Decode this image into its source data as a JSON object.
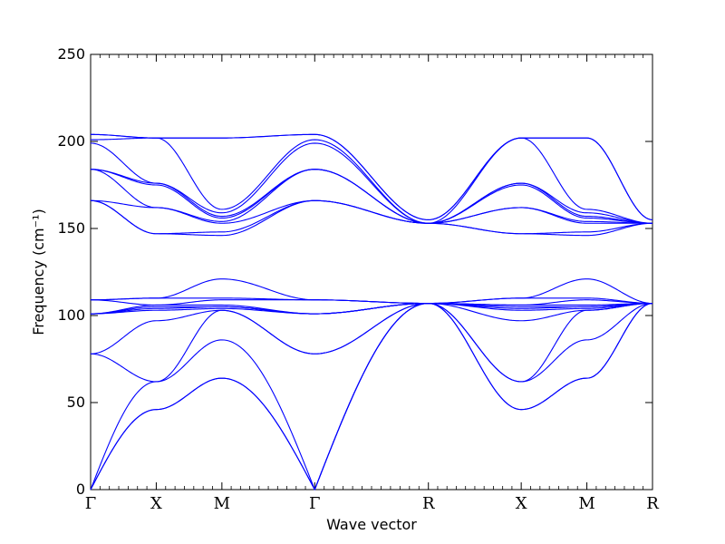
{
  "chart_data": {
    "type": "line",
    "xlabel": "Wave vector",
    "ylabel": "Frequency (cm⁻¹)",
    "ylim": [
      0,
      250
    ],
    "yticks": [
      "0",
      "50",
      "100",
      "150",
      "200",
      "250"
    ],
    "grid": false,
    "x_axis_kind": "k-path (symmetry points)",
    "symmetry_points": [
      {
        "label": "Γ",
        "x": 0
      },
      {
        "label": "X",
        "x": 1
      },
      {
        "label": "M",
        "x": 2
      },
      {
        "label": "Γ",
        "x": 3.4142
      },
      {
        "label": "R",
        "x": 5.1462
      },
      {
        "label": "X",
        "x": 6.5604
      },
      {
        "label": "M",
        "x": 7.5604
      },
      {
        "label": "R",
        "x": 8.5604
      }
    ],
    "line_color": "#0000ff",
    "series_note": "phonon dispersion branches; frequencies at symmetry points (cm^-1)",
    "branches": [
      {
        "values": [
          0,
          46,
          64,
          0,
          107,
          46,
          64,
          107
        ]
      },
      {
        "values": [
          0,
          46,
          64,
          0,
          107,
          46,
          64,
          107
        ]
      },
      {
        "values": [
          0,
          62,
          86,
          0,
          107,
          62,
          86,
          107
        ]
      },
      {
        "values": [
          78,
          62,
          103,
          78,
          107,
          62,
          103,
          107
        ]
      },
      {
        "values": [
          78,
          97,
          103,
          78,
          107,
          97,
          103,
          107
        ]
      },
      {
        "values": [
          101,
          103,
          104,
          101,
          107,
          103,
          104,
          107
        ]
      },
      {
        "values": [
          101,
          104,
          105,
          101,
          107,
          104,
          105,
          107
        ]
      },
      {
        "values": [
          101,
          105,
          105,
          101,
          107,
          105,
          105,
          107
        ]
      },
      {
        "values": [
          101,
          106,
          106,
          101,
          107,
          106,
          106,
          107
        ]
      },
      {
        "values": [
          109,
          106,
          109,
          109,
          107,
          106,
          109,
          107
        ]
      },
      {
        "values": [
          109,
          110,
          110,
          109,
          107,
          110,
          110,
          107
        ]
      },
      {
        "values": [
          109,
          110,
          121,
          109,
          107,
          110,
          121,
          107
        ]
      },
      {
        "values": [
          166,
          147,
          146,
          166,
          153,
          147,
          146,
          153
        ]
      },
      {
        "values": [
          166,
          147,
          148,
          166,
          153,
          147,
          148,
          153
        ]
      },
      {
        "values": [
          166,
          162,
          153,
          166,
          153,
          162,
          153,
          153
        ]
      },
      {
        "values": [
          184,
          162,
          154,
          184,
          153,
          162,
          154,
          153
        ]
      },
      {
        "values": [
          184,
          175,
          156,
          184,
          153,
          175,
          156,
          153
        ]
      },
      {
        "values": [
          184,
          176,
          157,
          184,
          153,
          176,
          157,
          153
        ]
      },
      {
        "values": [
          199,
          176,
          159,
          199,
          153,
          176,
          159,
          153
        ]
      },
      {
        "values": [
          201,
          202,
          161,
          201,
          153,
          202,
          161,
          153
        ]
      },
      {
        "values": [
          204,
          202,
          202,
          204,
          155,
          202,
          202,
          155
        ]
      },
      {
        "values": [
          204,
          202,
          202,
          204,
          155,
          202,
          202,
          155
        ]
      }
    ]
  }
}
